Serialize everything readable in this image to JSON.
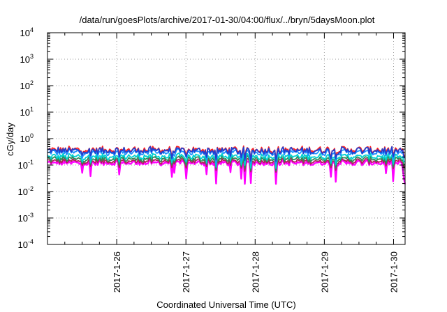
{
  "chart_data": {
    "type": "line",
    "title": "/data/run/goesPlots/archive/2017-01-30/04:00/flux/../bryn/5daysMoon.plot",
    "xlabel": "Coordinated Universal Time (UTC)",
    "ylabel": "cGy/day",
    "yscale": "log",
    "ylim": [
      0.0001,
      10000
    ],
    "y_ticks": [
      {
        "base": "10",
        "exp": "-4"
      },
      {
        "base": "10",
        "exp": "-3"
      },
      {
        "base": "10",
        "exp": "-2"
      },
      {
        "base": "10",
        "exp": "-1"
      },
      {
        "base": "10",
        "exp": "0"
      },
      {
        "base": "10",
        "exp": "1"
      },
      {
        "base": "10",
        "exp": "2"
      },
      {
        "base": "10",
        "exp": "3"
      },
      {
        "base": "10",
        "exp": "4"
      }
    ],
    "xlim": [
      "2017-01-25 00:00",
      "2017-01-30 04:00"
    ],
    "x_ticks": [
      "2017-1-26",
      "2017-1-27",
      "2017-1-28",
      "2017-1-29",
      "2017-1-30"
    ],
    "grid": true,
    "series": [
      {
        "color": "#ff00ff",
        "level": 0.12
      },
      {
        "color": "#b0205a",
        "level": 0.14
      },
      {
        "color": "#2e8b57",
        "level": 0.17
      },
      {
        "color": "#00d0d0",
        "level": 0.21
      },
      {
        "color": "#1e90ff",
        "level": 0.3
      },
      {
        "color": "#ff2020",
        "level": 0.38
      },
      {
        "color": "#2040d0",
        "level": 0.35
      }
    ]
  }
}
